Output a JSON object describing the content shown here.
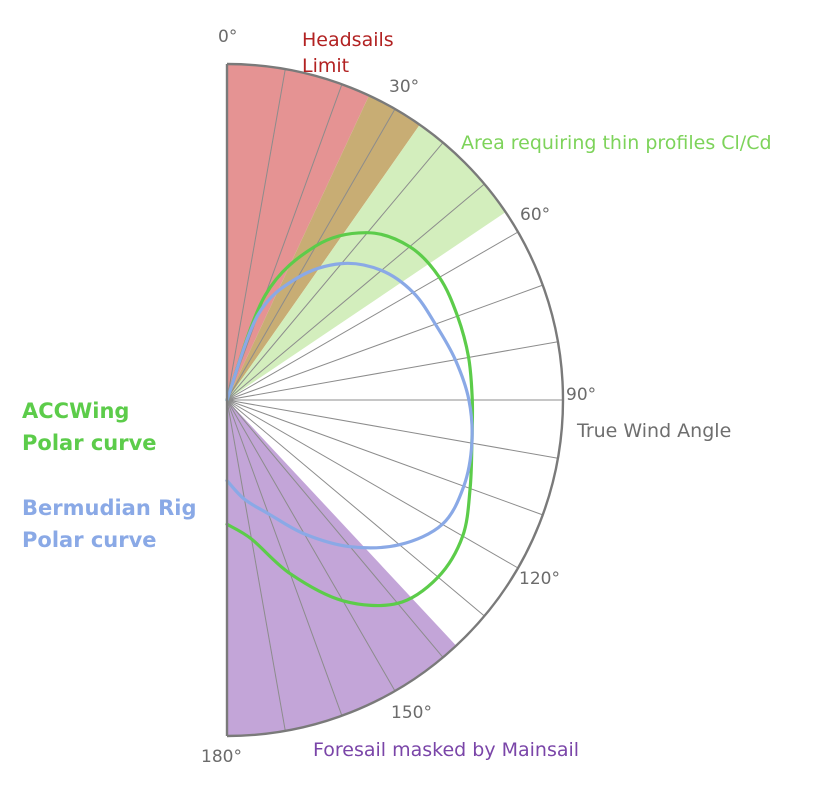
{
  "diagram": {
    "angle_labels": [
      {
        "deg": 0,
        "text": "0°"
      },
      {
        "deg": 30,
        "text": "30°"
      },
      {
        "deg": 60,
        "text": "60°"
      },
      {
        "deg": 90,
        "text": "90°"
      },
      {
        "deg": 120,
        "text": "120°"
      },
      {
        "deg": 150,
        "text": "150°"
      },
      {
        "deg": 180,
        "text": "180°"
      }
    ],
    "zones": {
      "headsails_limit": {
        "from": 0,
        "to": 25,
        "color": "#e59393",
        "label_line1": "Headsails",
        "label_line2": "Limit",
        "label_color": "#b22222"
      },
      "tan_band": {
        "from": 25,
        "to": 35,
        "color": "#c8ad74"
      },
      "thin_profiles": {
        "from": 35,
        "to": 56,
        "color": "#d3eebd",
        "label": "Area requiring thin profiles Cl/Cd",
        "label_color": "#7dd35a"
      },
      "foresail_masked": {
        "from": 137,
        "to": 180,
        "color": "#c3a5d8",
        "label": "Foresail masked by Mainsail",
        "label_color": "#7a45a8"
      }
    },
    "axis_title": "True Wind Angle",
    "axis_title_color": "#6e6e6e",
    "radial_step_deg": 10,
    "curves": [
      {
        "name_line1": "ACCWing",
        "name_line2": "Polar curve",
        "color": "#5ccc4a",
        "points": [
          [
            0,
            0
          ],
          [
            20,
            0.33
          ],
          [
            30,
            0.53
          ],
          [
            40,
            0.65
          ],
          [
            50,
            0.71
          ],
          [
            60,
            0.73
          ],
          [
            70,
            0.73
          ],
          [
            80,
            0.73
          ],
          [
            90,
            0.73
          ],
          [
            100,
            0.74
          ],
          [
            110,
            0.77
          ],
          [
            120,
            0.81
          ],
          [
            130,
            0.82
          ],
          [
            140,
            0.79
          ],
          [
            150,
            0.69
          ],
          [
            160,
            0.55
          ],
          [
            170,
            0.42
          ],
          [
            180,
            0.37
          ]
        ]
      },
      {
        "name_line1": "Bermudian Rig",
        "name_line2": "Polar curve",
        "color": "#8aa9e6",
        "points": [
          [
            0,
            0
          ],
          [
            20,
            0.27
          ],
          [
            30,
            0.42
          ],
          [
            40,
            0.53
          ],
          [
            50,
            0.6
          ],
          [
            60,
            0.64
          ],
          [
            70,
            0.66
          ],
          [
            80,
            0.69
          ],
          [
            90,
            0.72
          ],
          [
            100,
            0.74
          ],
          [
            110,
            0.75
          ],
          [
            120,
            0.74
          ],
          [
            130,
            0.67
          ],
          [
            140,
            0.57
          ],
          [
            150,
            0.46
          ],
          [
            160,
            0.36
          ],
          [
            170,
            0.3
          ],
          [
            180,
            0.24
          ]
        ]
      }
    ]
  }
}
